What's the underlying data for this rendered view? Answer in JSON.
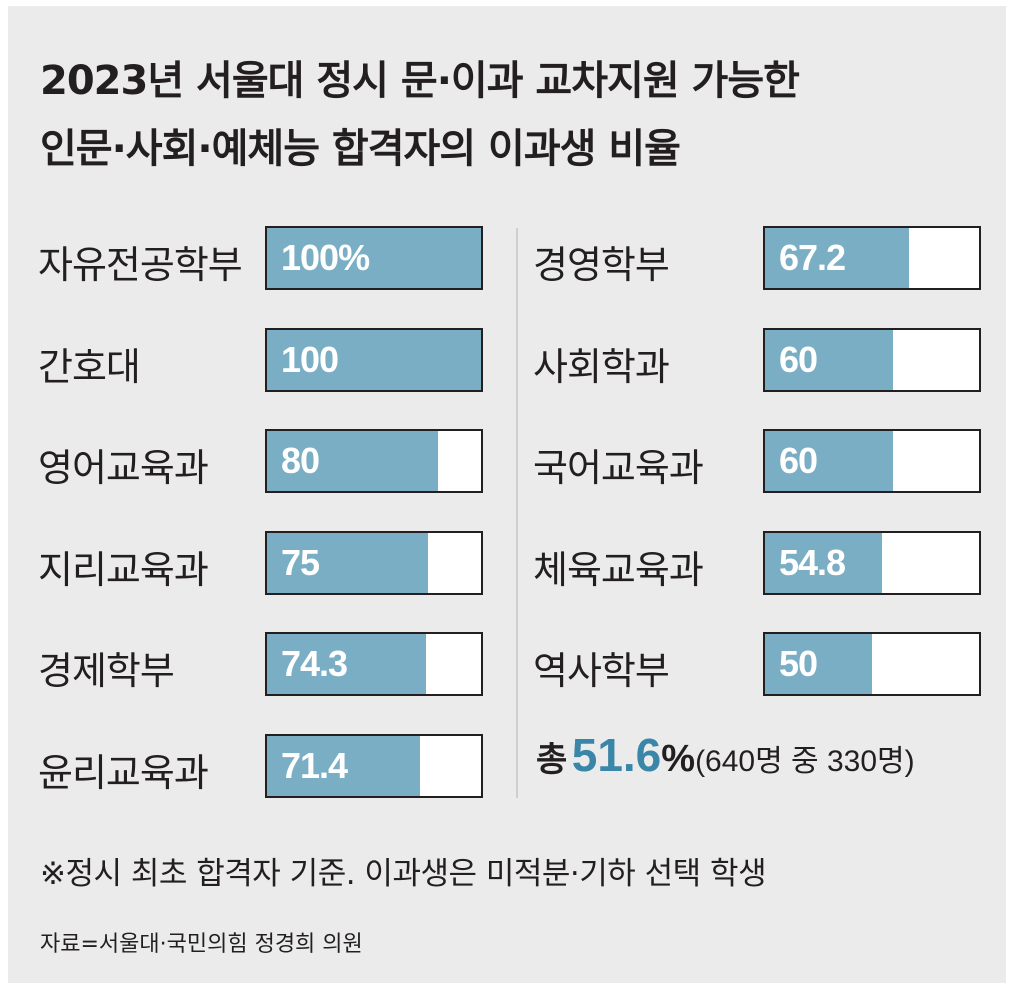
{
  "chart_data": {
    "type": "bar",
    "title": "2023년 서울대 정시 문·이과 교차지원 가능한",
    "subtitle": "인문·사회·예체능 합격자의 이과생 비율",
    "unit": "%",
    "xlim": [
      0,
      100
    ],
    "bar_color": "#7aaec4",
    "categories": [
      "자유전공학부",
      "간호대",
      "영어교육과",
      "지리교육과",
      "경제학부",
      "윤리교육과",
      "경영학부",
      "사회학과",
      "국어교육과",
      "체육교육과",
      "역사학부"
    ],
    "values": [
      100,
      100,
      80,
      75,
      74.3,
      71.4,
      67.2,
      60,
      60,
      54.8,
      50
    ],
    "value_labels": [
      "100%",
      "100",
      "80",
      "75",
      "74.3",
      "71.4",
      "67.2",
      "60",
      "60",
      "54.8",
      "50"
    ],
    "total": {
      "prefix": "총",
      "value": "51.6",
      "unit": "%",
      "detail": "(640명 중 330명)"
    },
    "note": "※정시 최초 합격자 기준. 이과생은 미적분·기하 선택 학생",
    "source": "자료=서울대·국민의힘 정경희 의원",
    "accent_color": "#3a86a8"
  }
}
